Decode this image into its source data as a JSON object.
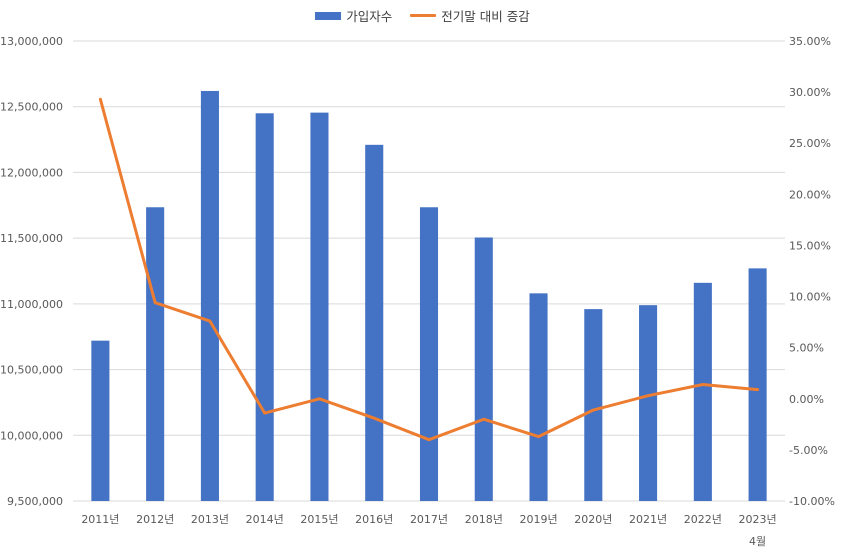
{
  "chart_data": {
    "type": "bar",
    "categories": [
      "2011년",
      "2012년",
      "2013년",
      "2014년",
      "2015년",
      "2016년",
      "2017년",
      "2018년",
      "2019년",
      "2020년",
      "2021년",
      "2022년",
      "2023년"
    ],
    "category_sublabels": [
      "",
      "",
      "",
      "",
      "",
      "",
      "",
      "",
      "",
      "",
      "",
      "",
      "4월"
    ],
    "series": [
      {
        "name": "가입자수",
        "type": "bar",
        "axis": "left",
        "color": "#4472C4",
        "values": [
          10720000,
          11735000,
          12620000,
          12450000,
          12455000,
          12210000,
          11735000,
          11505000,
          11080000,
          10960000,
          10990000,
          11160000,
          11270000
        ]
      },
      {
        "name": "전기말 대비 증감",
        "type": "line",
        "axis": "right",
        "color": "#ED7D31",
        "values": [
          29.3,
          9.4,
          7.6,
          -1.4,
          0.0,
          -1.9,
          -4.0,
          -2.0,
          -3.7,
          -1.1,
          0.3,
          1.4,
          0.9
        ]
      }
    ],
    "y_left": {
      "min": 9500000,
      "max": 13000000,
      "step": 500000,
      "ticks": [
        "9,500,000",
        "10,000,000",
        "10,500,000",
        "11,000,000",
        "11,500,000",
        "12,000,000",
        "12,500,000",
        "13,000,000"
      ]
    },
    "y_right": {
      "min": -10,
      "max": 35,
      "step": 5,
      "ticks": [
        "-10.00%",
        "-5.00%",
        "0.00%",
        "5.00%",
        "10.00%",
        "15.00%",
        "20.00%",
        "25.00%",
        "30.00%",
        "35.00%"
      ]
    },
    "grid": true,
    "legend_position": "top-center"
  }
}
